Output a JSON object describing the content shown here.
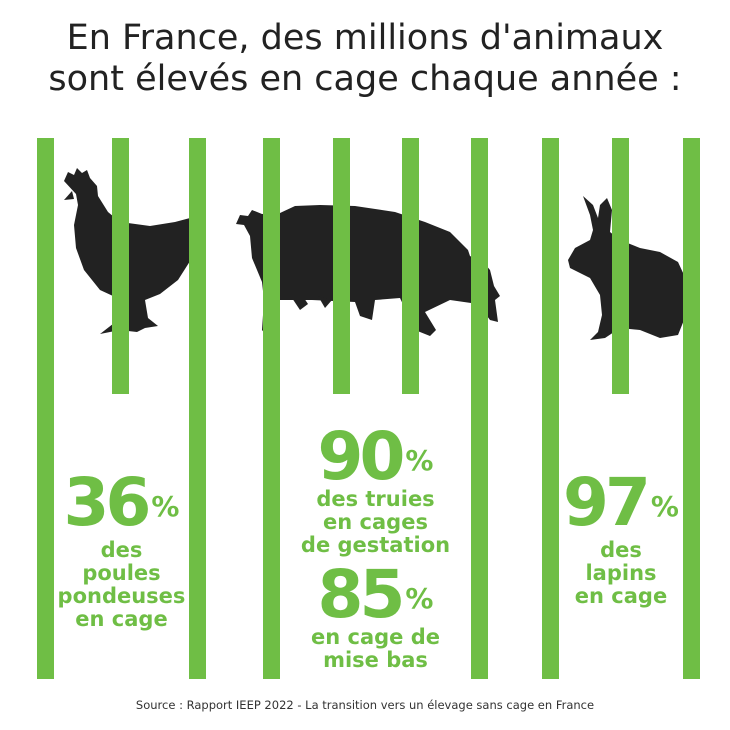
{
  "title_line1": "En France, des millions d'animaux",
  "title_line2": "sont élevés en cage chaque année :",
  "colors": {
    "bars": "#6fbe45",
    "silhouettes": "#222222",
    "title": "#222222"
  },
  "icons": [
    "hen-icon",
    "pig-icon",
    "rabbit-icon"
  ],
  "stats": {
    "hens": {
      "value": "36",
      "unit": "%",
      "label": "des\npoules\npondeuses\nen cage"
    },
    "sows_gestation": {
      "value": "90",
      "unit": "%",
      "label": "des truies\nen cages\nde gestation"
    },
    "sows_farrowing": {
      "value": "85",
      "unit": "%",
      "label": "en cage de\nmise bas"
    },
    "rabbits": {
      "value": "97",
      "unit": "%",
      "label": "des\nlapins\nen cage"
    }
  },
  "source": "Source : Rapport IEEP 2022 - La transition vers un élevage sans cage en France"
}
